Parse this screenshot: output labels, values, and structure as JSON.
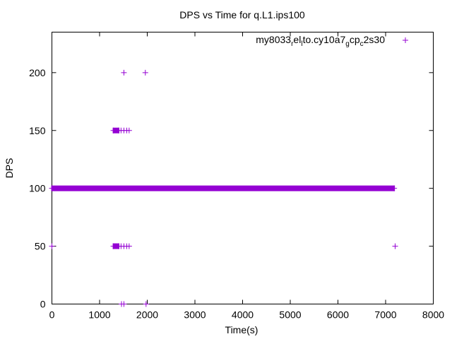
{
  "chart_data": {
    "type": "scatter",
    "title": "DPS vs Time for q.L1.ips100",
    "xlabel": "Time(s)",
    "ylabel": "DPS",
    "xlim": [
      0,
      8000
    ],
    "ylim": [
      0,
      235
    ],
    "xticks": [
      0,
      1000,
      2000,
      3000,
      4000,
      5000,
      6000,
      7000,
      8000
    ],
    "yticks": [
      0,
      50,
      100,
      150,
      200
    ],
    "grid": false,
    "legend_position": "top-right",
    "color": "#9400d3",
    "series": [
      {
        "name": "my8033_rel_lto.cy10a7_gcp_c2s30",
        "legend": {
          "base1": "my8033",
          "sub1": "r",
          "mid1": "el",
          "sub2": "l",
          "mid2": "to.cy10a7",
          "sub3": "g",
          "mid3": "cp",
          "sub4": "c",
          "tail": "2s30"
        },
        "bands": [
          {
            "y": 100,
            "x_from": 0,
            "x_to": 7180
          },
          {
            "y": 150,
            "x_from": 1290,
            "x_to": 1400
          },
          {
            "y": 50,
            "x_from": 1290,
            "x_to": 1400
          }
        ],
        "points": [
          {
            "x": 1510,
            "y": 200
          },
          {
            "x": 1960,
            "y": 200
          },
          {
            "x": 1450,
            "y": 150
          },
          {
            "x": 1510,
            "y": 150
          },
          {
            "x": 1570,
            "y": 150
          },
          {
            "x": 1620,
            "y": 150
          },
          {
            "x": 0,
            "y": 50
          },
          {
            "x": 1450,
            "y": 50
          },
          {
            "x": 1510,
            "y": 50
          },
          {
            "x": 1570,
            "y": 50
          },
          {
            "x": 1620,
            "y": 50
          },
          {
            "x": 7200,
            "y": 50
          },
          {
            "x": 1460,
            "y": 0
          },
          {
            "x": 1510,
            "y": 0
          },
          {
            "x": 1975,
            "y": 0
          }
        ]
      }
    ]
  }
}
